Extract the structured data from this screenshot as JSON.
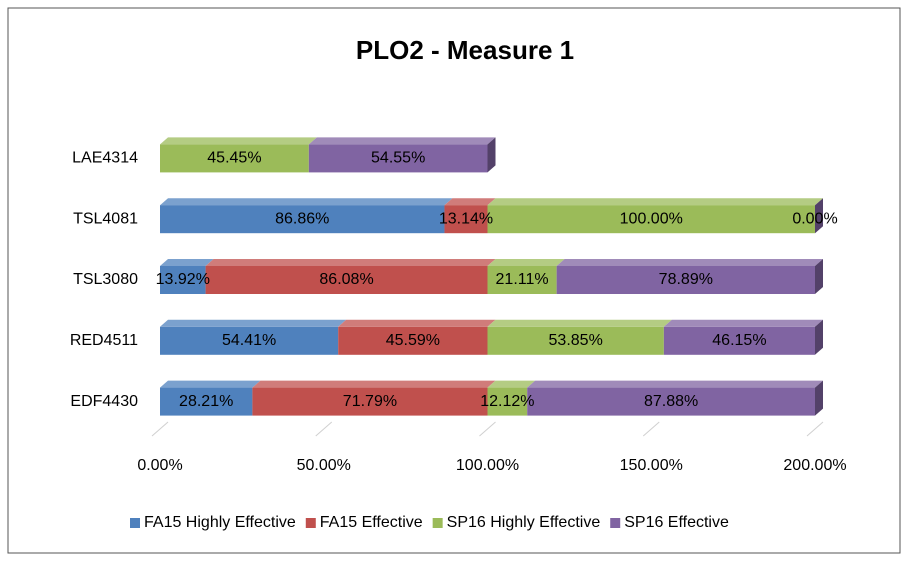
{
  "chart_data": {
    "type": "bar",
    "orientation": "horizontal",
    "stacked": true,
    "title": "PLO2 - Measure 1",
    "categories": [
      "LAE4314",
      "TSL4081",
      "TSL3080",
      "RED4511",
      "EDF4430"
    ],
    "series": [
      {
        "name": "FA15 Highly Effective",
        "color": "#4f81bd",
        "values": [
          null,
          86.86,
          13.92,
          54.41,
          28.21
        ],
        "value_labels": [
          null,
          "86.86%",
          "13.92%",
          "54.41%",
          "28.21%"
        ]
      },
      {
        "name": "FA15 Effective",
        "color": "#c0504d",
        "values": [
          null,
          13.14,
          86.08,
          45.59,
          71.79
        ],
        "value_labels": [
          null,
          "13.14%",
          "86.08%",
          "45.59%",
          "71.79%"
        ]
      },
      {
        "name": "SP16 Highly Effective",
        "color": "#9bbb59",
        "values": [
          45.45,
          100.0,
          21.11,
          53.85,
          12.12
        ],
        "value_labels": [
          "45.45%",
          "100.00%",
          "21.11%",
          "53.85%",
          "12.12%"
        ]
      },
      {
        "name": "SP16 Effective",
        "color": "#8064a2",
        "values": [
          54.55,
          0.0,
          78.89,
          46.15,
          87.88
        ],
        "value_labels": [
          "54.55%",
          "0.00%",
          "78.89%",
          "46.15%",
          "87.88%"
        ]
      }
    ],
    "xlim": [
      0,
      200
    ],
    "xticks": [
      {
        "value": 0,
        "label": "0.00%"
      },
      {
        "value": 50,
        "label": "50.00%"
      },
      {
        "value": 100,
        "label": "100.00%"
      },
      {
        "value": 150,
        "label": "150.00%"
      },
      {
        "value": 200,
        "label": "200.00%"
      }
    ],
    "grid": true,
    "legend": "bottom"
  }
}
